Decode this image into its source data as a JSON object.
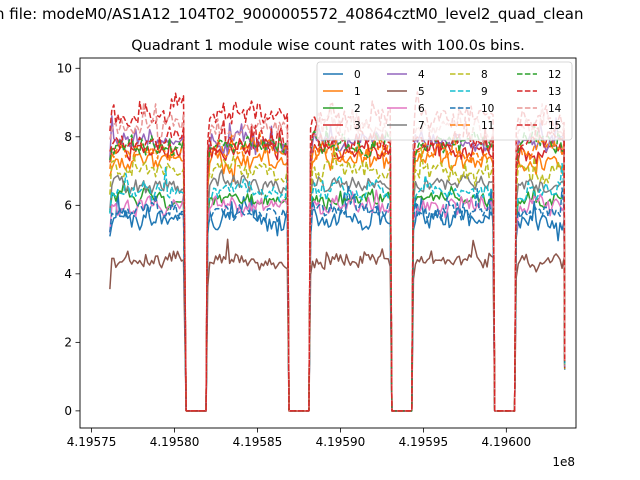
{
  "suptitle": "n file: modeM0/AS1A12_104T02_9000005572_40864cztM0_level2_quad_clean",
  "chart_data": {
    "type": "line",
    "title": "Quadrant 1 module wise count rates with 100.0s bins.",
    "xlabel": "",
    "ylabel": "",
    "x_offset_label": "1e8",
    "xlim": [
      4.195743,
      4.196042
    ],
    "ylim": [
      -0.5,
      10.3
    ],
    "x_ticks": [
      4.19575,
      4.1958,
      4.19585,
      4.1959,
      4.19595,
      4.196
    ],
    "x_tick_labels": [
      "4.19575",
      "4.19580",
      "4.19585",
      "4.19590",
      "4.19595",
      "4.19600"
    ],
    "y_ticks": [
      0,
      2,
      4,
      6,
      8,
      10
    ],
    "y_tick_labels": [
      "0",
      "2",
      "4",
      "6",
      "8",
      "10"
    ],
    "segments": [
      {
        "on": [
          4.195761,
          4.195806
        ],
        "off": [
          4.195807,
          4.195819
        ]
      },
      {
        "on": [
          4.19582,
          4.195868
        ],
        "off": [
          4.195869,
          4.195881
        ]
      },
      {
        "on": [
          4.195882,
          4.19593
        ],
        "off": [
          4.195931,
          4.195943
        ]
      },
      {
        "on": [
          4.195944,
          4.195992
        ],
        "off": [
          4.195993,
          4.196005
        ]
      },
      {
        "on": [
          4.196006,
          4.196035
        ],
        "off": null
      }
    ],
    "series": [
      {
        "name": "0",
        "color": "#1f77b4",
        "style": "solid",
        "level": 5.6,
        "noise": 0.35
      },
      {
        "name": "1",
        "color": "#ff7f0e",
        "style": "solid",
        "level": 7.3,
        "noise": 0.35
      },
      {
        "name": "2",
        "color": "#2ca02c",
        "style": "solid",
        "level": 6.2,
        "noise": 0.3
      },
      {
        "name": "3",
        "color": "#d62728",
        "style": "solid",
        "level": 7.6,
        "noise": 0.35
      },
      {
        "name": "4",
        "color": "#9467bd",
        "style": "solid",
        "level": 7.9,
        "noise": 0.35
      },
      {
        "name": "5",
        "color": "#8c564b",
        "style": "solid",
        "level": 4.4,
        "noise": 0.25
      },
      {
        "name": "6",
        "color": "#e377c2",
        "style": "solid",
        "level": 6.0,
        "noise": 0.3
      },
      {
        "name": "7",
        "color": "#7f7f7f",
        "style": "solid",
        "level": 6.6,
        "noise": 0.3
      },
      {
        "name": "8",
        "color": "#bcbd22",
        "style": "dashed",
        "level": 7.0,
        "noise": 0.35
      },
      {
        "name": "9",
        "color": "#17becf",
        "style": "dashed",
        "level": 6.4,
        "noise": 0.3
      },
      {
        "name": "10",
        "color": "#1f77b4",
        "style": "dashed",
        "level": 5.8,
        "noise": 0.3
      },
      {
        "name": "11",
        "color": "#ff7f0e",
        "style": "dashed",
        "level": 7.6,
        "noise": 0.35
      },
      {
        "name": "12",
        "color": "#2ca02c",
        "style": "dashed",
        "level": 7.8,
        "noise": 0.35
      },
      {
        "name": "13",
        "color": "#d62728",
        "style": "dashed",
        "level": 8.6,
        "noise": 0.4
      },
      {
        "name": "14",
        "color": "#e89594",
        "style": "dashed",
        "level": 8.3,
        "noise": 0.4
      },
      {
        "name": "15",
        "color": "#d62728",
        "style": "dashed",
        "level": 7.9,
        "noise": 0.35
      }
    ],
    "legend": {
      "location": "top-right",
      "columns": 4
    }
  }
}
